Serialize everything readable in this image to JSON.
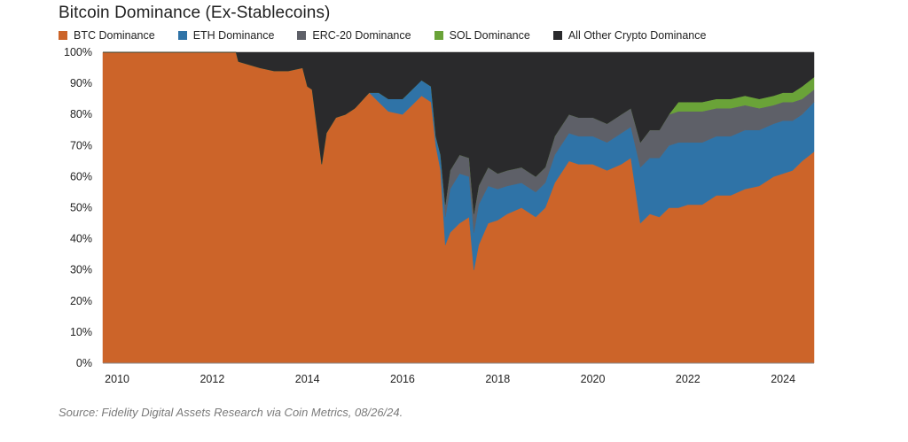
{
  "title": "Bitcoin Dominance (Ex-Stablecoins)",
  "source": "Source: Fidelity Digital Assets Research via Coin Metrics, 08/26/24.",
  "chart_data": {
    "type": "area",
    "stacked": true,
    "title": "Bitcoin Dominance (Ex-Stablecoins)",
    "xlabel": "",
    "ylabel": "",
    "xlim": [
      2009.7,
      2024.65
    ],
    "ylim": [
      0,
      100
    ],
    "legend_position": "top-left",
    "grid": false,
    "x_ticks": [
      2010,
      2012,
      2014,
      2016,
      2018,
      2020,
      2022,
      2024
    ],
    "x_tick_labels": [
      "2010",
      "2012",
      "2014",
      "2016",
      "2018",
      "2020",
      "2022",
      "2024"
    ],
    "y_ticks": [
      0,
      10,
      20,
      30,
      40,
      50,
      60,
      70,
      80,
      90,
      100
    ],
    "y_tick_labels": [
      "0%",
      "10%",
      "20%",
      "30%",
      "40%",
      "50%",
      "60%",
      "70%",
      "80%",
      "90%",
      "100%"
    ],
    "x": [
      2009.7,
      2012.5,
      2012.55,
      2013.0,
      2013.3,
      2013.6,
      2013.9,
      2014.0,
      2014.1,
      2014.3,
      2014.4,
      2014.6,
      2014.8,
      2015.0,
      2015.3,
      2015.5,
      2015.7,
      2016.0,
      2016.2,
      2016.4,
      2016.6,
      2016.7,
      2016.8,
      2016.9,
      2017.0,
      2017.2,
      2017.4,
      2017.5,
      2017.6,
      2017.8,
      2018.0,
      2018.2,
      2018.5,
      2018.8,
      2019.0,
      2019.2,
      2019.5,
      2019.7,
      2020.0,
      2020.3,
      2020.6,
      2020.8,
      2021.0,
      2021.2,
      2021.4,
      2021.6,
      2021.8,
      2022.0,
      2022.3,
      2022.6,
      2022.9,
      2023.2,
      2023.5,
      2023.8,
      2024.0,
      2024.2,
      2024.4,
      2024.65
    ],
    "series": [
      {
        "name": "BTC Dominance",
        "color": "#cc6429",
        "values": [
          100,
          100,
          97,
          95,
          94,
          94,
          95,
          89,
          88,
          64,
          74,
          79,
          80,
          82,
          87,
          84,
          81,
          80,
          83,
          86,
          84,
          70,
          62,
          38,
          42,
          45,
          47,
          30,
          38,
          45,
          46,
          48,
          50,
          47,
          50,
          58,
          65,
          64,
          64,
          62,
          64,
          66,
          45,
          48,
          47,
          50,
          50,
          51,
          51,
          54,
          54,
          56,
          57,
          60,
          61,
          62,
          65,
          68
        ]
      },
      {
        "name": "ETH Dominance",
        "color": "#2f73a7",
        "values": [
          0,
          0,
          0,
          0,
          0,
          0,
          0,
          0,
          0,
          0,
          0,
          0,
          0,
          0,
          0,
          3,
          4,
          5,
          5,
          5,
          5,
          3,
          5,
          9,
          14,
          16,
          13,
          12,
          13,
          12,
          10,
          9,
          8,
          8,
          8,
          9,
          9,
          9,
          9,
          9,
          10,
          10,
          18,
          18,
          19,
          20,
          21,
          20,
          20,
          19,
          19,
          19,
          18,
          17,
          17,
          16,
          15,
          16
        ]
      },
      {
        "name": "ERC-20 Dominance",
        "color": "#5e6068",
        "values": [
          0,
          0,
          0,
          0,
          0,
          0,
          0,
          0,
          0,
          0,
          0,
          0,
          0,
          0,
          0,
          0,
          0,
          0,
          0,
          0,
          0,
          0,
          0,
          4,
          6,
          6,
          6,
          6,
          6,
          6,
          5,
          5,
          5,
          5,
          5,
          6,
          6,
          6,
          6,
          6,
          6,
          6,
          8,
          9,
          9,
          10,
          10,
          10,
          10,
          9,
          9,
          8,
          7,
          6,
          6,
          6,
          5,
          4
        ]
      },
      {
        "name": "SOL Dominance",
        "color": "#6aa338",
        "values": [
          0,
          0,
          0,
          0,
          0,
          0,
          0,
          0,
          0,
          0,
          0,
          0,
          0,
          0,
          0,
          0,
          0,
          0,
          0,
          0,
          0,
          0,
          0,
          0,
          0,
          0,
          0,
          0,
          0,
          0,
          0,
          0,
          0,
          0,
          0,
          0,
          0,
          0,
          0,
          0,
          0,
          0,
          0,
          0,
          0,
          0,
          3,
          3,
          3,
          3,
          3,
          3,
          3,
          3,
          3,
          3,
          4,
          4
        ]
      },
      {
        "name": "All Other Crypto Dominance",
        "color": "#2a2a2c",
        "values": [
          0,
          0,
          3,
          5,
          6,
          6,
          5,
          11,
          12,
          36,
          26,
          21,
          20,
          18,
          13,
          13,
          15,
          15,
          12,
          9,
          11,
          27,
          33,
          49,
          38,
          33,
          34,
          52,
          43,
          37,
          39,
          38,
          37,
          40,
          37,
          27,
          20,
          21,
          21,
          23,
          20,
          18,
          29,
          25,
          25,
          20,
          16,
          16,
          16,
          15,
          15,
          14,
          15,
          14,
          13,
          13,
          11,
          8
        ]
      }
    ]
  }
}
